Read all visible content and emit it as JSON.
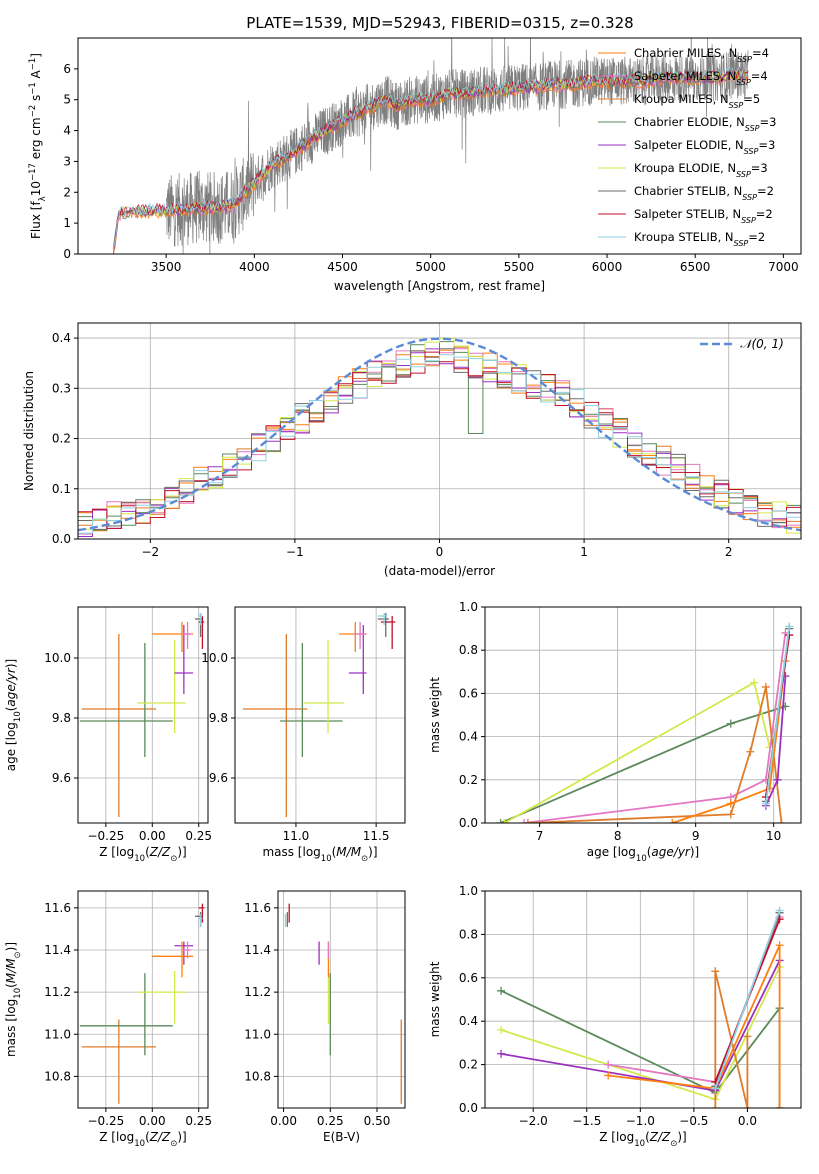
{
  "figure": {
    "title": "PLATE=1539, MJD=52943, FIBERID=0315, z=0.328"
  },
  "colors": {
    "chabrier_miles": "#ff7f0e",
    "salpeter_miles": "#e377c2",
    "kroupa_miles": "#e07b2a",
    "chabrier_elodie": "#5a8a5a",
    "salpeter_elodie": "#9b30c0",
    "kroupa_elodie": "#d4e84a",
    "chabrier_stelib": "#6e6e6e",
    "salpeter_stelib": "#c0102a",
    "kroupa_stelib": "#8fd0e0",
    "normal": "#5b8bd6"
  },
  "chart_data": [
    {
      "id": "spectrum",
      "type": "line",
      "title": "PLATE=1539, MJD=52943, FIBERID=0315, z=0.328",
      "xlabel": "wavelength [Angstrom, rest frame]",
      "ylabel": "Flux [f$_\\lambda$ 10$^{-17}$ erg cm$^{-2}$ s$^{-1}$ A$^{-1}$]",
      "xlim": [
        3000,
        7100
      ],
      "ylim": [
        0,
        7
      ],
      "xticks": [
        3500,
        4000,
        4500,
        5000,
        5500,
        6000,
        6500,
        7000
      ],
      "yticks": [
        0,
        1,
        2,
        3,
        4,
        5,
        6
      ],
      "legend_position": "top-right",
      "legend": [
        "Chabrier MILES, N$_{SSP}$=4",
        "Salpeter MILES, N$_{SSP}$=4",
        "Kroupa MILES, N$_{SSP}$=5",
        "Chabrier ELODIE, N$_{SSP}$=3",
        "Salpeter ELODIE, N$_{SSP}$=3",
        "Kroupa ELODIE, N$_{SSP}$=3",
        "Chabrier STELIB, N$_{SSP}$=2",
        "Salpeter STELIB, N$_{SSP}$=2",
        "Kroupa STELIB, N$_{SSP}$=2"
      ],
      "legend_items": [
        {
          "text": "Chabrier MILES, N",
          "sub": "SSP",
          "end": "=4"
        },
        {
          "text": "Salpeter MILES, N",
          "sub": "SSP",
          "end": "=4"
        },
        {
          "text": "Kroupa MILES, N",
          "sub": "SSP",
          "end": "=5"
        },
        {
          "text": "Chabrier ELODIE, N",
          "sub": "SSP",
          "end": "=3"
        },
        {
          "text": "Salpeter ELODIE, N",
          "sub": "SSP",
          "end": "=3"
        },
        {
          "text": "Kroupa ELODIE, N",
          "sub": "SSP",
          "end": "=3"
        },
        {
          "text": "Chabrier STELIB, N",
          "sub": "SSP",
          "end": "=2"
        },
        {
          "text": "Salpeter STELIB, N",
          "sub": "SSP",
          "end": "=2"
        },
        {
          "text": "Kroupa STELIB, N",
          "sub": "SSP",
          "end": "=2"
        }
      ],
      "model_continuum": {
        "x": [
          3200,
          3230,
          3300,
          3400,
          3500,
          3600,
          3700,
          3800,
          3850,
          3900,
          3950,
          4000,
          4100,
          4200,
          4300,
          4400,
          4500,
          4600,
          4700,
          4750,
          4800,
          4900,
          5000,
          5100,
          5200,
          5300,
          5400,
          5500,
          5600,
          5700,
          5800,
          5900,
          6000,
          6100,
          6200,
          6300,
          6400,
          6500,
          6600,
          6700,
          6800
        ],
        "y": [
          0,
          1.3,
          1.35,
          1.4,
          1.4,
          1.45,
          1.5,
          1.5,
          1.55,
          1.7,
          2.0,
          2.3,
          2.9,
          3.2,
          3.6,
          4.0,
          4.3,
          4.6,
          4.9,
          5.0,
          4.8,
          5.0,
          5.0,
          5.2,
          5.2,
          5.3,
          5.3,
          5.4,
          5.4,
          5.5,
          5.5,
          5.6,
          5.6,
          5.6,
          5.6,
          5.7,
          5.7,
          5.7,
          5.7,
          5.8,
          5.8
        ]
      },
      "observed_range": [
        3500,
        6800
      ]
    },
    {
      "id": "residuals",
      "type": "line",
      "xlabel": "(data-model)/error",
      "ylabel": "Normed distribution",
      "xlim": [
        -2.5,
        2.5
      ],
      "ylim": [
        0,
        0.43
      ],
      "xticks": [
        -2,
        -1,
        0,
        1,
        2
      ],
      "yticks": [
        0.0,
        0.1,
        0.2,
        0.3,
        0.4
      ],
      "legend_position": "top-right",
      "legend": [
        "$\\mathcal{N}(0,1)$"
      ],
      "normal_label": "𝒩(0, 1)",
      "bin_width": 0.1,
      "hist_envelope": [
        0.03,
        0.035,
        0.045,
        0.05,
        0.06,
        0.07,
        0.085,
        0.1,
        0.115,
        0.13,
        0.15,
        0.165,
        0.18,
        0.2,
        0.22,
        0.24,
        0.26,
        0.28,
        0.3,
        0.31,
        0.33,
        0.34,
        0.35,
        0.36,
        0.365,
        0.37,
        0.36,
        0.35,
        0.34,
        0.33,
        0.32,
        0.31,
        0.3,
        0.29,
        0.27,
        0.25,
        0.23,
        0.21,
        0.19,
        0.17,
        0.155,
        0.14,
        0.12,
        0.1,
        0.09,
        0.075,
        0.065,
        0.055,
        0.045,
        0.04
      ]
    },
    {
      "id": "age_vs_Z",
      "type": "scatter",
      "xlabel": "Z [log$_{10}$(Z/Z$_\\odot$)]",
      "ylabel": "age  [log$_{10}$(age/yr)]",
      "xlim": [
        -0.4,
        0.3
      ],
      "ylim": [
        9.45,
        10.17
      ],
      "xticks": [
        -0.25,
        0.0,
        0.25
      ],
      "yticks": [
        9.6,
        9.8,
        10.0
      ],
      "points": [
        {
          "series": "Kroupa MILES",
          "x": -0.18,
          "y": 9.83,
          "xerr": [
            0.2,
            0.2
          ],
          "yerr": [
            0.36,
            0.25
          ]
        },
        {
          "series": "Chabrier ELODIE",
          "x": -0.04,
          "y": 9.79,
          "xerr": [
            0.35,
            0.15
          ],
          "yerr": [
            0.12,
            0.26
          ]
        },
        {
          "series": "Kroupa ELODIE",
          "x": 0.12,
          "y": 9.85,
          "xerr": [
            0.2,
            0.06
          ],
          "yerr": [
            0.1,
            0.21
          ]
        },
        {
          "series": "Salpeter ELODIE",
          "x": 0.17,
          "y": 9.95,
          "xerr": [
            0.05,
            0.05
          ],
          "yerr": [
            0.07,
            0.16
          ]
        },
        {
          "series": "Chabrier MILES",
          "x": 0.16,
          "y": 10.08,
          "xerr": [
            0.16,
            0.06
          ],
          "yerr": [
            0.06,
            0.04
          ]
        },
        {
          "series": "Salpeter MILES",
          "x": 0.19,
          "y": 10.08,
          "xerr": [
            0.03,
            0.02
          ],
          "yerr": [
            0.05,
            0.04
          ]
        },
        {
          "series": "Chabrier STELIB",
          "x": 0.26,
          "y": 10.13,
          "xerr": [
            0.03,
            0.01
          ],
          "yerr": [
            0.06,
            0.02
          ]
        },
        {
          "series": "Salpeter STELIB",
          "x": 0.27,
          "y": 10.12,
          "xerr": [
            0.02,
            0.01
          ],
          "yerr": [
            0.09,
            0.02
          ]
        },
        {
          "series": "Kroupa STELIB",
          "x": 0.26,
          "y": 10.14,
          "xerr": [
            0.01,
            0.01
          ],
          "yerr": [
            0.03,
            0.01
          ]
        }
      ]
    },
    {
      "id": "age_vs_mass",
      "type": "scatter",
      "xlabel": "mass [log$_{10}$(M/M$_\\odot$)]",
      "ylabel": "",
      "xlim": [
        10.62,
        11.68
      ],
      "ylim": [
        9.45,
        10.17
      ],
      "xticks": [
        11.0,
        11.5
      ],
      "yticks": [
        9.6,
        9.8,
        10.0
      ],
      "points": [
        {
          "series": "Kroupa MILES",
          "x": 10.94,
          "y": 9.83,
          "xerr": [
            0.27,
            0.13
          ],
          "yerr": [
            0.36,
            0.25
          ]
        },
        {
          "series": "Chabrier ELODIE",
          "x": 11.04,
          "y": 9.79,
          "xerr": [
            0.14,
            0.25
          ],
          "yerr": [
            0.12,
            0.26
          ]
        },
        {
          "series": "Kroupa ELODIE",
          "x": 11.2,
          "y": 9.85,
          "xerr": [
            0.15,
            0.1
          ],
          "yerr": [
            0.1,
            0.21
          ]
        },
        {
          "series": "Salpeter ELODIE",
          "x": 11.42,
          "y": 9.95,
          "xerr": [
            0.09,
            0.02
          ],
          "yerr": [
            0.07,
            0.16
          ]
        },
        {
          "series": "Chabrier MILES",
          "x": 11.37,
          "y": 10.08,
          "xerr": [
            0.1,
            0.07
          ],
          "yerr": [
            0.06,
            0.04
          ]
        },
        {
          "series": "Salpeter MILES",
          "x": 11.4,
          "y": 10.08,
          "xerr": [
            0.04,
            0.04
          ],
          "yerr": [
            0.05,
            0.04
          ]
        },
        {
          "series": "Chabrier STELIB",
          "x": 11.56,
          "y": 10.13,
          "xerr": [
            0.05,
            0.02
          ],
          "yerr": [
            0.06,
            0.02
          ]
        },
        {
          "series": "Salpeter STELIB",
          "x": 11.6,
          "y": 10.12,
          "xerr": [
            0.07,
            0.02
          ],
          "yerr": [
            0.09,
            0.02
          ]
        },
        {
          "series": "Kroupa STELIB",
          "x": 11.55,
          "y": 10.14,
          "xerr": [
            0.04,
            0.02
          ],
          "yerr": [
            0.03,
            0.01
          ]
        }
      ]
    },
    {
      "id": "mass_weight_vs_age",
      "type": "line",
      "xlabel": "age  [log$_{10}$(age/yr)]",
      "ylabel": "mass weight",
      "xlim": [
        6.3,
        10.35
      ],
      "ylim": [
        0,
        1.0
      ],
      "xticks": [
        7,
        8,
        9,
        10
      ],
      "yticks": [
        0.0,
        0.2,
        0.4,
        0.6,
        0.8,
        1.0
      ],
      "series": [
        {
          "name": "Chabrier ELODIE",
          "x": [
            6.5,
            9.45,
            10.15
          ],
          "y": [
            0.0,
            0.46,
            0.54
          ]
        },
        {
          "name": "Kroupa ELODIE",
          "x": [
            6.55,
            9.75,
            9.95
          ],
          "y": [
            0.0,
            0.65,
            0.35
          ]
        },
        {
          "name": "Salpeter MILES",
          "x": [
            6.8,
            9.45,
            9.9,
            10.15
          ],
          "y": [
            0.0,
            0.12,
            0.2,
            0.88
          ]
        },
        {
          "name": "Kroupa MILES",
          "x": [
            6.85,
            9.45,
            9.7,
            9.9,
            10.1
          ],
          "y": [
            0.0,
            0.04,
            0.33,
            0.63,
            0.0
          ]
        },
        {
          "name": "Chabrier MILES",
          "x": [
            8.7,
            9.45,
            9.95,
            10.15
          ],
          "y": [
            0.0,
            0.09,
            0.16,
            0.75
          ]
        },
        {
          "name": "Salpeter ELODIE",
          "x": [
            9.9,
            10.05,
            10.15
          ],
          "y": [
            0.08,
            0.2,
            0.68
          ]
        },
        {
          "name": "Chabrier STELIB",
          "x": [
            9.9,
            10.2
          ],
          "y": [
            0.1,
            0.9
          ]
        },
        {
          "name": "Salpeter STELIB",
          "x": [
            9.9,
            10.2
          ],
          "y": [
            0.12,
            0.87
          ]
        },
        {
          "name": "Kroupa STELIB",
          "x": [
            9.9,
            10.2
          ],
          "y": [
            0.09,
            0.91
          ]
        }
      ]
    },
    {
      "id": "mass_vs_Z",
      "type": "scatter",
      "xlabel": "Z [log$_{10}$(Z/Z$_\\odot$)]",
      "ylabel": "mass [log$_{10}$(M/M$_\\odot$)]",
      "xlim": [
        -0.4,
        0.3
      ],
      "ylim": [
        10.65,
        11.68
      ],
      "xticks": [
        -0.25,
        0.0,
        0.25
      ],
      "yticks": [
        10.8,
        11.0,
        11.2,
        11.4,
        11.6
      ],
      "points": [
        {
          "series": "Kroupa MILES",
          "x": -0.18,
          "y": 10.94,
          "xerr": [
            0.2,
            0.2
          ],
          "yerr": [
            0.27,
            0.13
          ]
        },
        {
          "series": "Chabrier ELODIE",
          "x": -0.04,
          "y": 11.04,
          "xerr": [
            0.35,
            0.15
          ],
          "yerr": [
            0.14,
            0.25
          ]
        },
        {
          "series": "Kroupa ELODIE",
          "x": 0.12,
          "y": 11.2,
          "xerr": [
            0.2,
            0.06
          ],
          "yerr": [
            0.15,
            0.1
          ]
        },
        {
          "series": "Salpeter ELODIE",
          "x": 0.17,
          "y": 11.42,
          "xerr": [
            0.05,
            0.05
          ],
          "yerr": [
            0.09,
            0.02
          ]
        },
        {
          "series": "Chabrier MILES",
          "x": 0.16,
          "y": 11.37,
          "xerr": [
            0.16,
            0.06
          ],
          "yerr": [
            0.1,
            0.07
          ]
        },
        {
          "series": "Salpeter MILES",
          "x": 0.19,
          "y": 11.4,
          "xerr": [
            0.03,
            0.02
          ],
          "yerr": [
            0.04,
            0.04
          ]
        },
        {
          "series": "Chabrier STELIB",
          "x": 0.26,
          "y": 11.56,
          "xerr": [
            0.03,
            0.01
          ],
          "yerr": [
            0.05,
            0.02
          ]
        },
        {
          "series": "Salpeter STELIB",
          "x": 0.27,
          "y": 11.6,
          "xerr": [
            0.02,
            0.01
          ],
          "yerr": [
            0.07,
            0.02
          ]
        },
        {
          "series": "Kroupa STELIB",
          "x": 0.26,
          "y": 11.55,
          "xerr": [
            0.01,
            0.01
          ],
          "yerr": [
            0.04,
            0.02
          ]
        }
      ]
    },
    {
      "id": "mass_vs_ebv",
      "type": "scatter",
      "xlabel": "E(B-V)",
      "ylabel": "",
      "xlim": [
        -0.03,
        0.65
      ],
      "ylim": [
        10.65,
        11.68
      ],
      "xticks": [
        0.0,
        0.25,
        0.5
      ],
      "yticks": [
        10.8,
        11.0,
        11.2,
        11.4,
        11.6
      ],
      "points": [
        {
          "series": "Kroupa MILES",
          "x": 0.63,
          "y": 10.94,
          "yerr": [
            0.27,
            0.13
          ]
        },
        {
          "series": "Chabrier ELODIE",
          "x": 0.25,
          "y": 11.04,
          "yerr": [
            0.14,
            0.25
          ]
        },
        {
          "series": "Kroupa ELODIE",
          "x": 0.24,
          "y": 11.2,
          "yerr": [
            0.15,
            0.1
          ]
        },
        {
          "series": "Salpeter ELODIE",
          "x": 0.19,
          "y": 11.42,
          "yerr": [
            0.09,
            0.02
          ]
        },
        {
          "series": "Chabrier MILES",
          "x": 0.24,
          "y": 11.37,
          "yerr": [
            0.1,
            0.07
          ]
        },
        {
          "series": "Salpeter MILES",
          "x": 0.24,
          "y": 11.4,
          "yerr": [
            0.04,
            0.04
          ]
        },
        {
          "series": "Chabrier STELIB",
          "x": 0.02,
          "y": 11.56,
          "yerr": [
            0.05,
            0.02
          ]
        },
        {
          "series": "Salpeter STELIB",
          "x": 0.03,
          "y": 11.6,
          "yerr": [
            0.07,
            0.02
          ]
        },
        {
          "series": "Kroupa STELIB",
          "x": 0.01,
          "y": 11.55,
          "yerr": [
            0.04,
            0.02
          ]
        }
      ]
    },
    {
      "id": "mass_weight_vs_Z",
      "type": "line",
      "xlabel": "Z [log$_{10}$(Z/Z$_\\odot$)]",
      "ylabel": "mass weight",
      "xlim": [
        -2.45,
        0.5
      ],
      "ylim": [
        0,
        1.0
      ],
      "xticks": [
        -2.0,
        -1.5,
        -1.0,
        -0.5,
        0.0
      ],
      "yticks": [
        0.0,
        0.2,
        0.4,
        0.6,
        0.8,
        1.0
      ],
      "series": [
        {
          "name": "Chabrier ELODIE",
          "x": [
            -2.3,
            -0.3,
            0.3,
            0.3
          ],
          "y": [
            0.54,
            0.07,
            0.46,
            0.0
          ]
        },
        {
          "name": "Kroupa ELODIE",
          "x": [
            -2.3,
            -0.3,
            0.3
          ],
          "y": [
            0.36,
            0.04,
            0.65
          ]
        },
        {
          "name": "Salpeter ELODIE",
          "x": [
            -2.3,
            -0.3,
            0.3
          ],
          "y": [
            0.25,
            0.08,
            0.68
          ]
        },
        {
          "name": "Salpeter MILES",
          "x": [
            -1.3,
            -0.3,
            0.3
          ],
          "y": [
            0.2,
            0.12,
            0.88
          ]
        },
        {
          "name": "Chabrier MILES",
          "x": [
            -1.3,
            -0.3,
            0.3,
            0.3
          ],
          "y": [
            0.15,
            0.09,
            0.75,
            0.0
          ]
        },
        {
          "name": "Kroupa MILES",
          "x": [
            -0.3,
            -0.3,
            0.0,
            0.0
          ],
          "y": [
            0.0,
            0.63,
            0.0,
            0.33
          ]
        },
        {
          "name": "Chabrier STELIB",
          "x": [
            -0.3,
            0.3
          ],
          "y": [
            0.1,
            0.9
          ]
        },
        {
          "name": "Salpeter STELIB",
          "x": [
            -0.3,
            0.3
          ],
          "y": [
            0.12,
            0.87
          ]
        },
        {
          "name": "Kroupa STELIB",
          "x": [
            -0.3,
            0.3
          ],
          "y": [
            0.09,
            0.91
          ]
        }
      ]
    }
  ]
}
